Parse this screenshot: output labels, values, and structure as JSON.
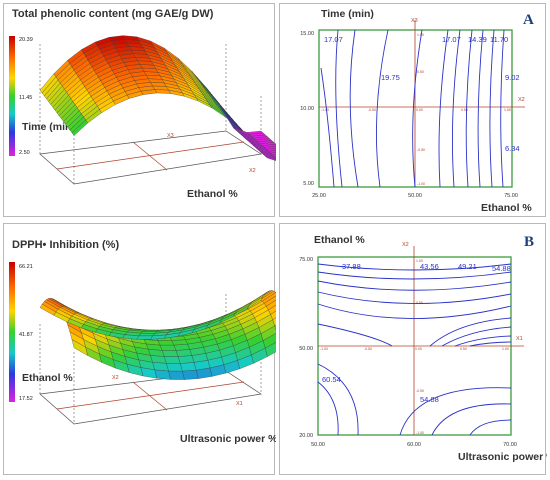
{
  "chart_data": [
    {
      "type": "surface",
      "title": "Total phenolic content (mg GAE/g DW)",
      "colorbar": {
        "ticks": [
          "20.39",
          "11.45",
          "2.50"
        ],
        "max": 20.39,
        "min": 2.5
      },
      "xlabel": "Ethanol %",
      "ylabel": "Time (min)",
      "x_axis_code": "X2",
      "y_axis_code": "X3"
    },
    {
      "type": "contour",
      "panel_letter": "A",
      "xlabel": "Ethanol %",
      "ylabel": "Time (min)",
      "x_ticks": [
        "25.00",
        "50.00",
        "75.00"
      ],
      "y_ticks": [
        "15.00",
        "10.00",
        "5.00"
      ],
      "xlim": [
        25,
        75
      ],
      "ylim": [
        5,
        15
      ],
      "x_axis_code": "X2",
      "y_axis_code": "X3",
      "contour_labels": [
        "17.07",
        "19.75",
        "17.07",
        "14.39",
        "11.70",
        "9.02",
        "6.34"
      ]
    },
    {
      "type": "surface",
      "title": "DPPH• Inhibition  (%)",
      "colorbar": {
        "ticks": [
          "66.21",
          "41.87",
          "17.52"
        ],
        "max": 66.21,
        "min": 17.52
      },
      "xlabel": "Ultrasonic power %",
      "ylabel": "Ethanol %",
      "x_axis_code": "X1",
      "y_axis_code": "X2"
    },
    {
      "type": "contour",
      "panel_letter": "B",
      "xlabel": "Ultrasonic power %",
      "ylabel": "Ethanol %",
      "x_ticks": [
        "50.00",
        "60.00",
        "70.00"
      ],
      "y_ticks": [
        "75.00",
        "50.00",
        "20.00"
      ],
      "xlim": [
        50,
        70
      ],
      "ylim": [
        20,
        75
      ],
      "x_axis_code": "X1",
      "y_axis_code": "X2",
      "contour_labels": [
        "37.88",
        "43.56",
        "49.21",
        "54.88",
        "60.54",
        "54.88"
      ]
    }
  ],
  "colors": {
    "contour_line": "#2a32c8",
    "frame_green": "#3f9a3f",
    "axis_brown": "#b0402a",
    "letter_blue": "#1f3f7a"
  }
}
